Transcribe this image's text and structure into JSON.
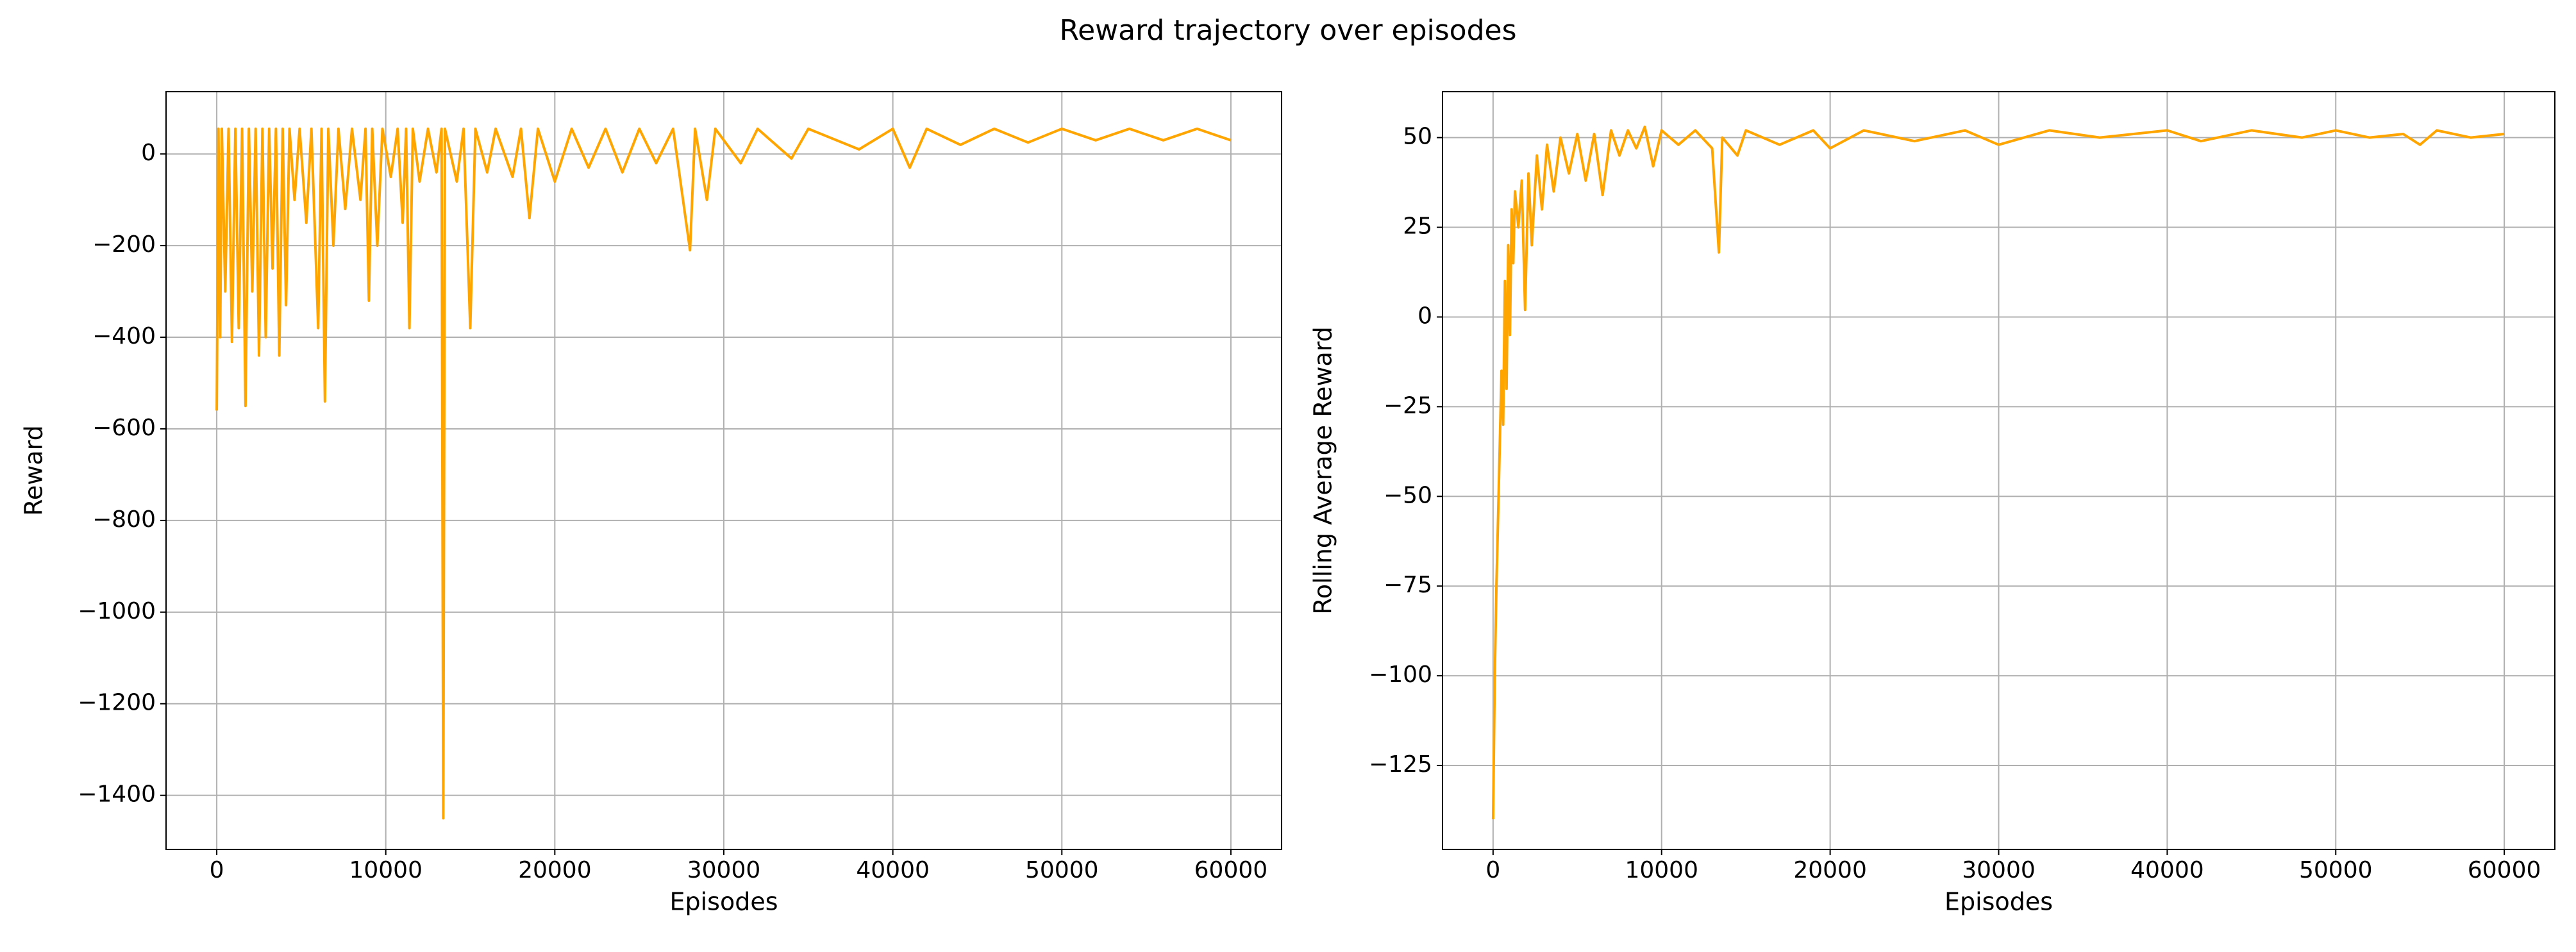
{
  "title": "Reward trajectory over episodes",
  "chart_data": [
    {
      "type": "line",
      "xlabel": "Episodes",
      "ylabel": "Reward",
      "color": "#ffa500",
      "grid": true,
      "xlim": [
        -3000,
        63000
      ],
      "ylim": [
        -1518,
        136
      ],
      "xticks": [
        0,
        10000,
        20000,
        30000,
        40000,
        50000,
        60000
      ],
      "yticks": [
        0,
        {
          "value": -200,
          "label": "−200"
        },
        {
          "value": -400,
          "label": "−400"
        },
        {
          "value": -600,
          "label": "−600"
        },
        {
          "value": -800,
          "label": "−800"
        },
        {
          "value": -1000,
          "label": "−1000"
        },
        {
          "value": -1200,
          "label": "−1200"
        },
        {
          "value": -1400,
          "label": "−1400"
        }
      ],
      "x": [
        0,
        100,
        200,
        300,
        500,
        700,
        900,
        1100,
        1300,
        1500,
        1700,
        1900,
        2100,
        2300,
        2500,
        2700,
        2900,
        3100,
        3300,
        3500,
        3700,
        3900,
        4100,
        4300,
        4600,
        4900,
        5300,
        5600,
        6000,
        6200,
        6400,
        6600,
        6900,
        7200,
        7600,
        8000,
        8500,
        8800,
        9000,
        9200,
        9500,
        9800,
        10300,
        10700,
        11000,
        11200,
        11400,
        11600,
        12000,
        12500,
        13000,
        13300,
        13400,
        13500,
        14200,
        14600,
        15000,
        15300,
        16000,
        16500,
        17500,
        18000,
        18500,
        19000,
        20000,
        21000,
        22000,
        23000,
        24000,
        25000,
        26000,
        27000,
        28000,
        28300,
        29000,
        29500,
        31000,
        32000,
        34000,
        35000,
        38000,
        40000,
        41000,
        42000,
        44000,
        46000,
        48000,
        50000,
        52000,
        54000,
        56000,
        58000,
        60000
      ],
      "values": [
        -560,
        55,
        -400,
        55,
        -300,
        55,
        -410,
        55,
        -380,
        55,
        -550,
        55,
        -300,
        55,
        -440,
        55,
        -400,
        55,
        -250,
        55,
        -440,
        55,
        -330,
        55,
        -100,
        55,
        -150,
        55,
        -380,
        55,
        -540,
        55,
        -200,
        55,
        -120,
        55,
        -100,
        55,
        -320,
        55,
        -200,
        55,
        -50,
        55,
        -150,
        55,
        -380,
        55,
        -60,
        55,
        -40,
        55,
        -1450,
        55,
        -60,
        55,
        -380,
        55,
        -40,
        55,
        -50,
        55,
        -140,
        55,
        -60,
        55,
        -30,
        55,
        -40,
        55,
        -20,
        55,
        -210,
        55,
        -100,
        55,
        -20,
        55,
        -10,
        55,
        10,
        55,
        -30,
        55,
        20,
        55,
        25,
        55,
        30,
        55,
        30,
        55,
        30
      ]
    },
    {
      "type": "line",
      "xlabel": "Episodes",
      "ylabel": "Rolling Average Reward",
      "color": "#ffa500",
      "grid": true,
      "xlim": [
        -3000,
        63000
      ],
      "ylim": [
        -148.4,
        62.8
      ],
      "xticks": [
        0,
        10000,
        20000,
        30000,
        40000,
        50000,
        60000
      ],
      "yticks": [
        50,
        25,
        0,
        {
          "value": -25,
          "label": "−25"
        },
        {
          "value": -50,
          "label": "−50"
        },
        {
          "value": -75,
          "label": "−75"
        },
        {
          "value": -100,
          "label": "−100"
        },
        {
          "value": -125,
          "label": "−125"
        }
      ],
      "x": [
        0,
        100,
        200,
        300,
        400,
        500,
        600,
        700,
        800,
        900,
        1000,
        1100,
        1200,
        1300,
        1500,
        1700,
        1900,
        2100,
        2300,
        2600,
        2900,
        3200,
        3600,
        4000,
        4500,
        5000,
        5500,
        6000,
        6500,
        7000,
        7500,
        8000,
        8500,
        9000,
        9500,
        10000,
        11000,
        12000,
        13000,
        13400,
        13600,
        14500,
        15000,
        17000,
        19000,
        20000,
        22000,
        25000,
        28000,
        30000,
        33000,
        36000,
        40000,
        42000,
        45000,
        48000,
        50000,
        52000,
        54000,
        55000,
        56000,
        58000,
        60000
      ],
      "values": [
        -140,
        -100,
        -75,
        -55,
        -35,
        -15,
        -30,
        10,
        -20,
        20,
        -5,
        30,
        15,
        35,
        25,
        38,
        2,
        40,
        20,
        45,
        30,
        48,
        35,
        50,
        40,
        51,
        38,
        51,
        34,
        52,
        45,
        52,
        47,
        53,
        42,
        52,
        48,
        52,
        47,
        18,
        50,
        45,
        52,
        48,
        52,
        47,
        52,
        49,
        52,
        48,
        52,
        50,
        52,
        49,
        52,
        50,
        52,
        50,
        51,
        48,
        52,
        50,
        51
      ]
    }
  ]
}
